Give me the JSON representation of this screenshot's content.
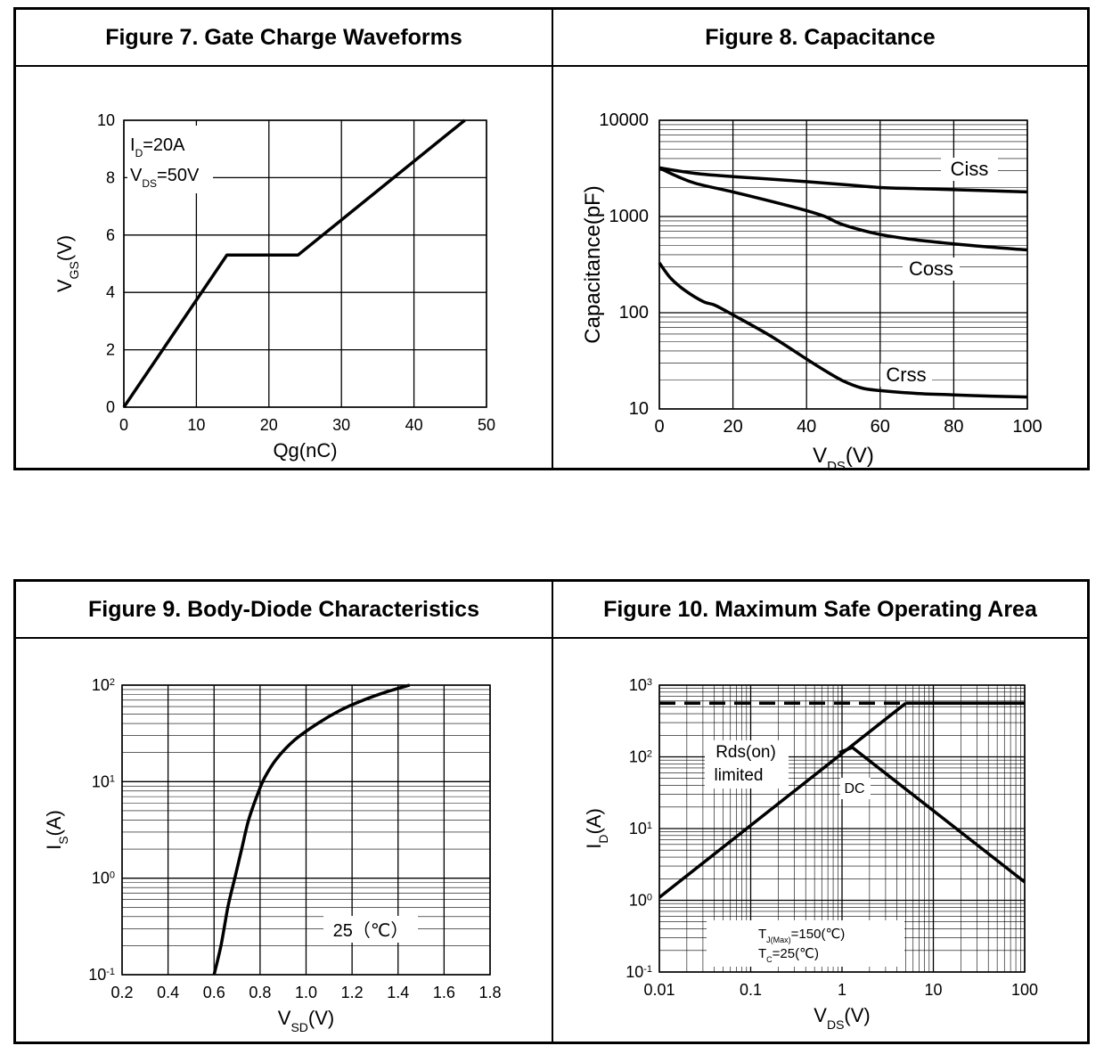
{
  "chart_data": [
    {
      "id": "fig7",
      "type": "line",
      "title": "Figure 7. Gate Charge Waveforms",
      "xlabel": "Qg(nC)",
      "ylabel": {
        "base": "V",
        "sub": "GS",
        "tail": "(V)"
      },
      "xlim": [
        0,
        50
      ],
      "ylim": [
        0,
        10
      ],
      "xticks": [
        0,
        10,
        20,
        30,
        40,
        50
      ],
      "yticks": [
        0,
        2,
        4,
        6,
        8,
        10
      ],
      "grid": true,
      "log_x": false,
      "log_y": false,
      "annotations": [
        {
          "base": "I",
          "sub": "D",
          "tail": "=20A"
        },
        {
          "base": "V",
          "sub": "DS",
          "tail": "=50V"
        }
      ],
      "series": [
        {
          "name": "VGS",
          "points": [
            [
              0,
              0
            ],
            [
              14.2,
              5.3
            ],
            [
              24,
              5.3
            ],
            [
              47,
              10
            ]
          ]
        }
      ]
    },
    {
      "id": "fig8",
      "type": "line",
      "title": "Figure 8. Capacitance",
      "xlabel": {
        "base": "V",
        "sub": "DS",
        "tail": "(V)"
      },
      "ylabel": "Capacitance(pF)",
      "xlim": [
        0,
        100
      ],
      "ylim": [
        10,
        10000
      ],
      "xticks": [
        0,
        20,
        40,
        60,
        80,
        100
      ],
      "yticks": [
        10,
        100,
        1000,
        10000
      ],
      "ytick_labels": [
        "10",
        "100",
        "1000",
        "10000"
      ],
      "grid": true,
      "log_x": false,
      "log_y": true,
      "series": [
        {
          "name": "Ciss",
          "points": [
            [
              0,
              3200
            ],
            [
              10,
              2800
            ],
            [
              20,
              2600
            ],
            [
              30,
              2450
            ],
            [
              40,
              2300
            ],
            [
              50,
              2150
            ],
            [
              60,
              2000
            ],
            [
              70,
              1950
            ],
            [
              80,
              1900
            ],
            [
              90,
              1850
            ],
            [
              100,
              1800
            ]
          ]
        },
        {
          "name": "Coss",
          "points": [
            [
              0,
              3200
            ],
            [
              5,
              2600
            ],
            [
              10,
              2200
            ],
            [
              20,
              1800
            ],
            [
              30,
              1450
            ],
            [
              40,
              1150
            ],
            [
              45,
              1000
            ],
            [
              50,
              820
            ],
            [
              60,
              650
            ],
            [
              70,
              570
            ],
            [
              80,
              520
            ],
            [
              90,
              480
            ],
            [
              100,
              450
            ]
          ]
        },
        {
          "name": "Crss",
          "points": [
            [
              0,
              330
            ],
            [
              3,
              230
            ],
            [
              7,
              170
            ],
            [
              12,
              130
            ],
            [
              15,
              120
            ],
            [
              20,
              95
            ],
            [
              30,
              58
            ],
            [
              40,
              33
            ],
            [
              45,
              25
            ],
            [
              50,
              19.5
            ],
            [
              55,
              16.5
            ],
            [
              60,
              15.5
            ],
            [
              70,
              14.5
            ],
            [
              80,
              14
            ],
            [
              90,
              13.6
            ],
            [
              100,
              13.3
            ]
          ]
        }
      ],
      "series_labels": [
        "Ciss",
        "Coss",
        "Crss"
      ]
    },
    {
      "id": "fig9",
      "type": "line",
      "title": "Figure 9. Body-Diode Characteristics",
      "xlabel": {
        "base": "V",
        "sub": "SD",
        "tail": "(V)"
      },
      "ylabel": {
        "base": "I",
        "sub": "S",
        "tail": "(A)"
      },
      "xlim": [
        0.2,
        1.8
      ],
      "ylim": [
        0.1,
        100
      ],
      "xticks": [
        0.2,
        0.4,
        0.6,
        0.8,
        1.0,
        1.2,
        1.4,
        1.6,
        1.8
      ],
      "xtick_labels": [
        "0.2",
        "0.4",
        "0.6",
        "0.8",
        "1.0",
        "1.2",
        "1.4",
        "1.6",
        "1.8"
      ],
      "yticks": [
        0.1,
        1,
        10,
        100
      ],
      "ytick_labels": [
        {
          "base": "10",
          "exp": "-1"
        },
        {
          "base": "10",
          "exp": "0"
        },
        {
          "base": "10",
          "exp": "1"
        },
        {
          "base": "10",
          "exp": "2"
        }
      ],
      "grid": true,
      "log_x": false,
      "log_y": true,
      "annotations": [
        "25（℃）"
      ],
      "series": [
        {
          "name": "25℃",
          "points": [
            [
              0.6,
              0.1
            ],
            [
              0.63,
              0.2
            ],
            [
              0.66,
              0.5
            ],
            [
              0.69,
              1.0
            ],
            [
              0.72,
              2.0
            ],
            [
              0.75,
              4.0
            ],
            [
              0.79,
              7.5
            ],
            [
              0.82,
              11
            ],
            [
              0.87,
              17
            ],
            [
              0.95,
              27
            ],
            [
              1.05,
              40
            ],
            [
              1.15,
              55
            ],
            [
              1.25,
              70
            ],
            [
              1.35,
              85
            ],
            [
              1.45,
              100
            ]
          ]
        }
      ]
    },
    {
      "id": "fig10",
      "type": "line",
      "title": "Figure 10. Maximum Safe Operating Area",
      "xlabel": {
        "base": "V",
        "sub": "DS",
        "tail": "(V)"
      },
      "ylabel": {
        "base": "I",
        "sub": "D",
        "tail": "(A)"
      },
      "xlim": [
        0.01,
        100
      ],
      "ylim": [
        0.1,
        1000
      ],
      "xticks": [
        0.01,
        0.1,
        1,
        10,
        100
      ],
      "xtick_labels": [
        "0.01",
        "0.1",
        "1",
        "10",
        "100"
      ],
      "yticks": [
        0.1,
        1,
        10,
        100,
        1000
      ],
      "ytick_labels": [
        {
          "base": "10",
          "exp": "-1"
        },
        {
          "base": "10",
          "exp": "0"
        },
        {
          "base": "10",
          "exp": "1"
        },
        {
          "base": "10",
          "exp": "2"
        },
        {
          "base": "10",
          "exp": "3"
        }
      ],
      "grid": true,
      "log_x": true,
      "log_y": true,
      "annotations": {
        "rds": [
          "Rds(on)",
          "limited"
        ],
        "dc": "DC",
        "tj": {
          "base": "T",
          "sub": "J(Max)",
          "tail": "=150(℃)"
        },
        "tc": {
          "base": "T",
          "sub": "C",
          "tail": "=25(℃)"
        }
      },
      "series": [
        {
          "name": "Package limit",
          "style": "dashed",
          "points": [
            [
              0.01,
              560
            ],
            [
              5.0,
              560
            ]
          ]
        },
        {
          "name": "Rds(on) limit",
          "points": [
            [
              0.01,
              1.1
            ],
            [
              5.0,
              560
            ]
          ]
        },
        {
          "name": "Current limit",
          "points": [
            [
              5.0,
              560
            ],
            [
              100,
              560
            ]
          ]
        },
        {
          "name": "DC",
          "points": [
            [
              0.93,
              115
            ],
            [
              1.3,
              135
            ],
            [
              100,
              1.8
            ]
          ]
        }
      ]
    }
  ]
}
